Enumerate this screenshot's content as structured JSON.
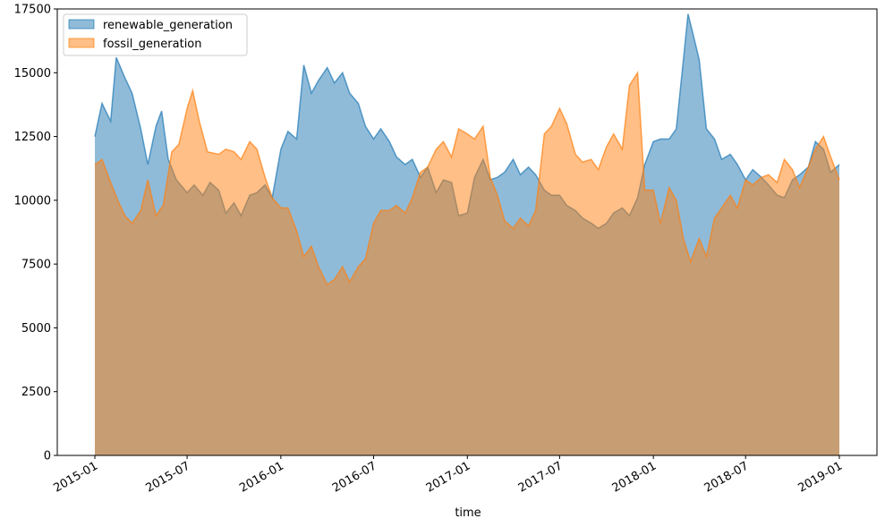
{
  "chart_data": {
    "type": "area",
    "xlabel": "time",
    "ylabel": "",
    "ylim": [
      0,
      17500
    ],
    "xlim": [
      "2015-01-01",
      "2019-01-01"
    ],
    "grid": false,
    "legend_position": "top-left",
    "x_ticks": [
      "2015-01",
      "2015-07",
      "2016-01",
      "2016-07",
      "2017-01",
      "2017-07",
      "2018-01",
      "2018-07",
      "2019-01"
    ],
    "y_ticks": [
      "0",
      "2500",
      "5000",
      "7500",
      "10000",
      "12500",
      "15000",
      "17500"
    ],
    "series": [
      {
        "name": "renewable_generation",
        "color": "#1f77b4",
        "points": [
          [
            "2015-01-01",
            12500
          ],
          [
            "2015-01-15",
            13800
          ],
          [
            "2015-02-01",
            13100
          ],
          [
            "2015-02-12",
            15600
          ],
          [
            "2015-03-01",
            14800
          ],
          [
            "2015-03-15",
            14200
          ],
          [
            "2015-04-01",
            12800
          ],
          [
            "2015-04-15",
            11400
          ],
          [
            "2015-05-01",
            12900
          ],
          [
            "2015-05-12",
            13500
          ],
          [
            "2015-05-25",
            11600
          ],
          [
            "2015-06-10",
            10800
          ],
          [
            "2015-07-01",
            10300
          ],
          [
            "2015-07-15",
            10600
          ],
          [
            "2015-08-01",
            10200
          ],
          [
            "2015-08-15",
            10700
          ],
          [
            "2015-09-01",
            10400
          ],
          [
            "2015-09-15",
            9500
          ],
          [
            "2015-10-01",
            9900
          ],
          [
            "2015-10-15",
            9400
          ],
          [
            "2015-11-01",
            10200
          ],
          [
            "2015-11-15",
            10300
          ],
          [
            "2015-12-01",
            10600
          ],
          [
            "2015-12-15",
            10100
          ],
          [
            "2016-01-01",
            12000
          ],
          [
            "2016-01-15",
            12700
          ],
          [
            "2016-02-01",
            12400
          ],
          [
            "2016-02-15",
            15300
          ],
          [
            "2016-03-01",
            14200
          ],
          [
            "2016-03-15",
            14700
          ],
          [
            "2016-04-01",
            15200
          ],
          [
            "2016-04-15",
            14600
          ],
          [
            "2016-05-01",
            15000
          ],
          [
            "2016-05-15",
            14200
          ],
          [
            "2016-06-01",
            13800
          ],
          [
            "2016-06-15",
            12900
          ],
          [
            "2016-07-01",
            12400
          ],
          [
            "2016-07-15",
            12800
          ],
          [
            "2016-08-01",
            12300
          ],
          [
            "2016-08-15",
            11700
          ],
          [
            "2016-09-01",
            11400
          ],
          [
            "2016-09-15",
            11600
          ],
          [
            "2016-10-01",
            10900
          ],
          [
            "2016-10-15",
            11300
          ],
          [
            "2016-11-01",
            10300
          ],
          [
            "2016-11-15",
            10800
          ],
          [
            "2016-12-01",
            10700
          ],
          [
            "2016-12-15",
            9400
          ],
          [
            "2017-01-01",
            9500
          ],
          [
            "2017-01-15",
            10900
          ],
          [
            "2017-02-01",
            11600
          ],
          [
            "2017-02-15",
            10800
          ],
          [
            "2017-03-01",
            10900
          ],
          [
            "2017-03-15",
            11100
          ],
          [
            "2017-04-01",
            11600
          ],
          [
            "2017-04-15",
            11000
          ],
          [
            "2017-05-01",
            11300
          ],
          [
            "2017-05-15",
            11000
          ],
          [
            "2017-06-01",
            10400
          ],
          [
            "2017-06-15",
            10200
          ],
          [
            "2017-07-01",
            10200
          ],
          [
            "2017-07-15",
            9800
          ],
          [
            "2017-08-01",
            9600
          ],
          [
            "2017-08-15",
            9300
          ],
          [
            "2017-09-01",
            9100
          ],
          [
            "2017-09-15",
            8900
          ],
          [
            "2017-10-01",
            9100
          ],
          [
            "2017-10-15",
            9500
          ],
          [
            "2017-11-01",
            9700
          ],
          [
            "2017-11-15",
            9400
          ],
          [
            "2017-12-01",
            10100
          ],
          [
            "2017-12-15",
            11400
          ],
          [
            "2018-01-01",
            12300
          ],
          [
            "2018-01-15",
            12400
          ],
          [
            "2018-02-01",
            12400
          ],
          [
            "2018-02-15",
            12800
          ],
          [
            "2018-03-01",
            15500
          ],
          [
            "2018-03-10",
            17300
          ],
          [
            "2018-03-20",
            16500
          ],
          [
            "2018-04-01",
            15500
          ],
          [
            "2018-04-15",
            12800
          ],
          [
            "2018-05-01",
            12400
          ],
          [
            "2018-05-15",
            11600
          ],
          [
            "2018-06-01",
            11800
          ],
          [
            "2018-06-15",
            11400
          ],
          [
            "2018-07-01",
            10800
          ],
          [
            "2018-07-15",
            11200
          ],
          [
            "2018-08-01",
            10900
          ],
          [
            "2018-08-15",
            10600
          ],
          [
            "2018-09-01",
            10200
          ],
          [
            "2018-09-15",
            10100
          ],
          [
            "2018-10-01",
            10800
          ],
          [
            "2018-10-15",
            11000
          ],
          [
            "2018-11-01",
            11300
          ],
          [
            "2018-11-15",
            12300
          ],
          [
            "2018-12-01",
            12000
          ],
          [
            "2018-12-15",
            11100
          ],
          [
            "2019-01-01",
            11400
          ]
        ]
      },
      {
        "name": "fossil_generation",
        "color": "#ff7f0e",
        "points": [
          [
            "2015-01-01",
            11400
          ],
          [
            "2015-01-15",
            11600
          ],
          [
            "2015-02-01",
            10700
          ],
          [
            "2015-02-15",
            10000
          ],
          [
            "2015-03-01",
            9400
          ],
          [
            "2015-03-15",
            9100
          ],
          [
            "2015-04-01",
            9600
          ],
          [
            "2015-04-15",
            10800
          ],
          [
            "2015-05-01",
            9400
          ],
          [
            "2015-05-15",
            9800
          ],
          [
            "2015-06-01",
            11900
          ],
          [
            "2015-06-15",
            12200
          ],
          [
            "2015-07-01",
            13600
          ],
          [
            "2015-07-12",
            14300
          ],
          [
            "2015-07-25",
            13100
          ],
          [
            "2015-08-10",
            11900
          ],
          [
            "2015-09-01",
            11800
          ],
          [
            "2015-09-15",
            12000
          ],
          [
            "2015-10-01",
            11900
          ],
          [
            "2015-10-15",
            11600
          ],
          [
            "2015-11-01",
            12300
          ],
          [
            "2015-11-15",
            12000
          ],
          [
            "2015-12-01",
            10900
          ],
          [
            "2015-12-15",
            10100
          ],
          [
            "2016-01-01",
            9700
          ],
          [
            "2016-01-15",
            9700
          ],
          [
            "2016-02-01",
            8800
          ],
          [
            "2016-02-15",
            7800
          ],
          [
            "2016-03-01",
            8200
          ],
          [
            "2016-03-15",
            7400
          ],
          [
            "2016-04-01",
            6700
          ],
          [
            "2016-04-15",
            6900
          ],
          [
            "2016-05-01",
            7400
          ],
          [
            "2016-05-15",
            6800
          ],
          [
            "2016-06-01",
            7400
          ],
          [
            "2016-06-15",
            7700
          ],
          [
            "2016-07-01",
            9100
          ],
          [
            "2016-07-15",
            9600
          ],
          [
            "2016-08-01",
            9600
          ],
          [
            "2016-08-15",
            9800
          ],
          [
            "2016-09-01",
            9500
          ],
          [
            "2016-09-15",
            10100
          ],
          [
            "2016-10-01",
            11100
          ],
          [
            "2016-10-15",
            11300
          ],
          [
            "2016-11-01",
            12000
          ],
          [
            "2016-11-15",
            12300
          ],
          [
            "2016-12-01",
            11700
          ],
          [
            "2016-12-15",
            12800
          ],
          [
            "2017-01-01",
            12600
          ],
          [
            "2017-01-15",
            12400
          ],
          [
            "2017-02-01",
            12900
          ],
          [
            "2017-02-15",
            10900
          ],
          [
            "2017-03-01",
            10200
          ],
          [
            "2017-03-15",
            9200
          ],
          [
            "2017-04-01",
            8900
          ],
          [
            "2017-04-15",
            9300
          ],
          [
            "2017-05-01",
            9000
          ],
          [
            "2017-05-15",
            9600
          ],
          [
            "2017-06-01",
            12600
          ],
          [
            "2017-06-15",
            12900
          ],
          [
            "2017-07-01",
            13600
          ],
          [
            "2017-07-15",
            13000
          ],
          [
            "2017-08-01",
            11800
          ],
          [
            "2017-08-15",
            11500
          ],
          [
            "2017-09-01",
            11600
          ],
          [
            "2017-09-15",
            11200
          ],
          [
            "2017-10-01",
            12100
          ],
          [
            "2017-10-15",
            12600
          ],
          [
            "2017-11-01",
            12000
          ],
          [
            "2017-11-15",
            14500
          ],
          [
            "2017-12-01",
            15000
          ],
          [
            "2017-12-15",
            10400
          ],
          [
            "2018-01-01",
            10400
          ],
          [
            "2018-01-15",
            9100
          ],
          [
            "2018-02-01",
            10500
          ],
          [
            "2018-02-15",
            10000
          ],
          [
            "2018-03-01",
            8500
          ],
          [
            "2018-03-15",
            7600
          ],
          [
            "2018-04-01",
            8500
          ],
          [
            "2018-04-15",
            7800
          ],
          [
            "2018-05-01",
            9300
          ],
          [
            "2018-05-15",
            9700
          ],
          [
            "2018-06-01",
            10200
          ],
          [
            "2018-06-15",
            9700
          ],
          [
            "2018-07-01",
            10800
          ],
          [
            "2018-07-15",
            10600
          ],
          [
            "2018-08-01",
            10900
          ],
          [
            "2018-08-15",
            11000
          ],
          [
            "2018-09-01",
            10700
          ],
          [
            "2018-09-15",
            11600
          ],
          [
            "2018-10-01",
            11200
          ],
          [
            "2018-10-15",
            10500
          ],
          [
            "2018-11-01",
            11300
          ],
          [
            "2018-11-15",
            12000
          ],
          [
            "2018-12-01",
            12500
          ],
          [
            "2018-12-15",
            11700
          ],
          [
            "2019-01-01",
            10800
          ]
        ]
      }
    ]
  }
}
